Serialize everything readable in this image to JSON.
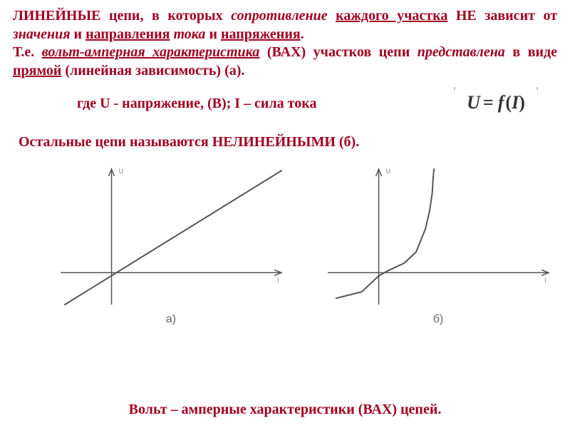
{
  "colors": {
    "text_main": "#a00020",
    "chart_stroke": "#555555",
    "chart_label": "#666666",
    "axis_label": "#999999",
    "background": "#ffffff"
  },
  "para1": {
    "segments": [
      {
        "t": "ЛИНЕЙНЫЕ цепи, в которых ",
        "cls": ""
      },
      {
        "t": "сопротивление",
        "cls": "italic"
      },
      {
        "t": " ",
        "cls": ""
      },
      {
        "t": "каждого участка",
        "cls": "uline"
      },
      {
        "t": " НЕ зависит от ",
        "cls": ""
      },
      {
        "t": "значения",
        "cls": "italic"
      },
      {
        "t": " и ",
        "cls": ""
      },
      {
        "t": "направления",
        "cls": "uline"
      },
      {
        "t": " ",
        "cls": ""
      },
      {
        "t": "тока",
        "cls": "italic"
      },
      {
        "t": " и ",
        "cls": ""
      },
      {
        "t": "напряжения",
        "cls": "uline"
      },
      {
        "t": ".",
        "cls": ""
      },
      {
        "t": "\n",
        "cls": "break"
      },
      {
        "t": "Т.е. ",
        "cls": ""
      },
      {
        "t": "вольт-амперная характеристика",
        "cls": "bolditalic-uline"
      },
      {
        "t": " (ВАХ) участков цепи ",
        "cls": ""
      },
      {
        "t": "представлена",
        "cls": "italic"
      },
      {
        "t": " в виде ",
        "cls": ""
      },
      {
        "t": "прямой",
        "cls": "uline"
      },
      {
        "t": " (линейная зависимость) (а).",
        "cls": ""
      }
    ]
  },
  "line2": {
    "text": "где U - напряжение, (В); I – сила тока",
    "formula": "U = f (I)"
  },
  "line3": {
    "text": "Остальные цепи называются НЕЛИНЕЙНЫМИ (б)."
  },
  "charts": {
    "a": {
      "type": "line",
      "axis_label_y": "u",
      "axis_label_x": "i",
      "xlim": [
        -60,
        200
      ],
      "ylim": [
        -40,
        130
      ],
      "line": {
        "points": [
          [
            -55,
            -40
          ],
          [
            200,
            128
          ]
        ],
        "stroke": "#555555",
        "width": 2
      },
      "caption": "а)"
    },
    "b": {
      "type": "line",
      "axis_label_y": "u",
      "axis_label_x": "i",
      "xlim": [
        -60,
        200
      ],
      "ylim": [
        -40,
        130
      ],
      "line": {
        "points": [
          [
            -50,
            -32
          ],
          [
            -20,
            -24
          ],
          [
            0,
            -4
          ],
          [
            10,
            2
          ],
          [
            18,
            6
          ],
          [
            30,
            12
          ],
          [
            44,
            26
          ],
          [
            55,
            55
          ],
          [
            60,
            78
          ],
          [
            63,
            100
          ],
          [
            64,
            118
          ],
          [
            65,
            130
          ]
        ],
        "stroke": "#555555",
        "width": 2
      },
      "caption": "б)"
    },
    "axis_stroke": "#555555",
    "axis_width": 1.5
  },
  "caption": "Вольт – амперные характеристики (ВАХ) цепей."
}
